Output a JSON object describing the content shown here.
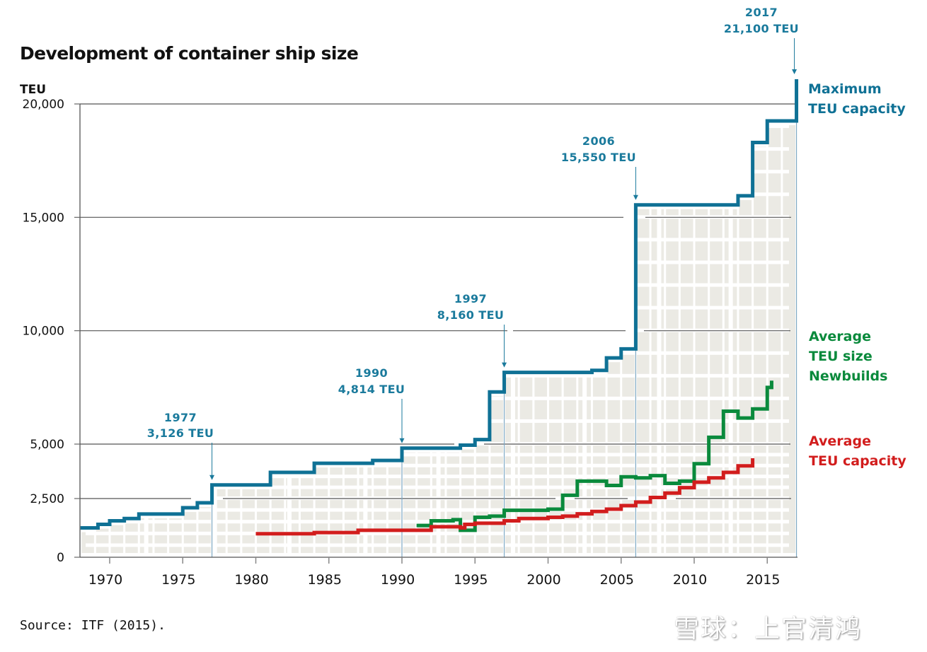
{
  "chart_data": {
    "type": "line",
    "step": true,
    "title": "Development of container ship size",
    "ylabel": "TEU",
    "xlabel": "",
    "xlim": [
      1968,
      2017
    ],
    "ylim": [
      0,
      21100
    ],
    "y_ticks": [
      0,
      2500,
      5000,
      10000,
      15000,
      20000
    ],
    "y_tick_labels": [
      "0",
      "2,500",
      "5,000",
      "10,000",
      "15,000",
      "20,000"
    ],
    "x_ticks": [
      1970,
      1975,
      1980,
      1985,
      1990,
      1995,
      2000,
      2005,
      2010,
      2015
    ],
    "x_tick_labels": [
      "1970",
      "1975",
      "1980",
      "1985",
      "1990",
      "1995",
      "2000",
      "2005",
      "2010",
      "2015"
    ],
    "grid": "horizontal at y ticks",
    "series": [
      {
        "name": "Maximum TEU capacity",
        "legend_lines": [
          "Maximum",
          "TEU capacity"
        ],
        "color": "#0f7195",
        "x": [
          1968,
          1969.2,
          1970,
          1971,
          1972,
          1975,
          1976,
          1977,
          1981,
          1984,
          1988,
          1990,
          1994,
          1995,
          1996,
          1997,
          2003,
          2004,
          2005,
          2006,
          2013,
          2014,
          2015,
          2017
        ],
        "y": [
          1250,
          1400,
          1550,
          1650,
          1840,
          2110,
          2320,
          3126,
          3700,
          4120,
          4250,
          4814,
          4950,
          5200,
          7300,
          8160,
          8250,
          8800,
          9200,
          15550,
          15950,
          18300,
          19250,
          21100
        ],
        "x_end": 2017
      },
      {
        "name": "Average TEU size Newbuilds",
        "legend_lines": [
          "Average",
          "TEU size",
          "Newbuilds"
        ],
        "color": "#0a8a3c",
        "x": [
          1991,
          1992,
          1993.5,
          1994,
          1995,
          1996,
          1997,
          1999,
          2000,
          2001,
          2002,
          2004,
          2005,
          2006,
          2007,
          2008,
          2009,
          2010,
          2011,
          2012,
          2013,
          2014,
          2015
        ],
        "y": [
          1350,
          1550,
          1600,
          1150,
          1700,
          1750,
          2000,
          2000,
          2050,
          2650,
          3300,
          3100,
          3500,
          3450,
          3550,
          3200,
          3300,
          4100,
          5300,
          6450,
          6150,
          6550,
          7500
        ],
        "x_end": 2015.3,
        "y_end": 7800
      },
      {
        "name": "Average TEU capacity",
        "legend_lines": [
          "Average",
          "TEU capacity"
        ],
        "color": "#d21d1d",
        "x": [
          1980,
          1984,
          1987,
          1992,
          1994,
          1994.3,
          1995,
          1997,
          1998,
          2000,
          2001,
          2002,
          2003,
          2004,
          2005,
          2006,
          2007,
          2008,
          2009,
          2010,
          2011,
          2012,
          2013
        ],
        "y": [
          1000,
          1050,
          1150,
          1300,
          1250,
          1400,
          1450,
          1550,
          1650,
          1700,
          1750,
          1850,
          1950,
          2050,
          2200,
          2350,
          2550,
          2750,
          3000,
          3250,
          3450,
          3700,
          4000
        ],
        "x_end": 2014,
        "y_end": 4350
      }
    ],
    "annotations": [
      {
        "year_label": "1977",
        "value_label": "3,126 TEU",
        "x": 1977,
        "y": 3126
      },
      {
        "year_label": "1990",
        "value_label": "4,814 TEU",
        "x": 1990,
        "y": 4814
      },
      {
        "year_label": "1997",
        "value_label": "8,160 TEU",
        "x": 1997,
        "y": 8160
      },
      {
        "year_label": "2006",
        "value_label": "15,550 TEU",
        "x": 2006,
        "y": 15550
      },
      {
        "year_label": "2017",
        "value_label": "21,100 TEU",
        "x": 2017,
        "y": 21100
      }
    ]
  },
  "source": "Source: ITF (2015).",
  "watermark": "雪球：上官清鸿",
  "colors": {
    "max": "#0f7195",
    "newbuilds": "#0a8a3c",
    "average": "#d21d1d",
    "annotation": "#1a7a9c",
    "panel": "#ebeae4"
  }
}
